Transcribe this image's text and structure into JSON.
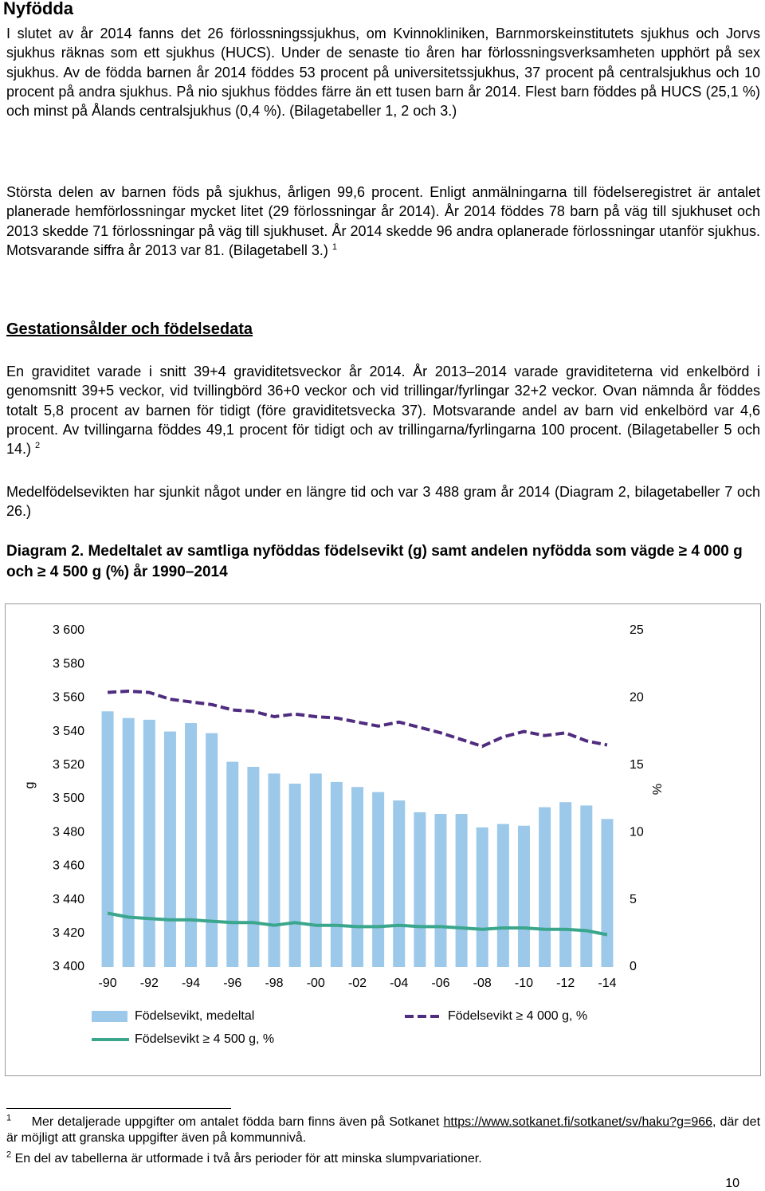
{
  "heading": "Nyfödda",
  "paragraphs": [
    {
      "text": "I slutet av år 2014 fanns det 26 förlossningssjukhus, om Kvinnokliniken, Barnmorskeinstitutets sjukhus och Jorvs sjukhus räknas som ett sjukhus (HUCS). Under de senaste tio åren har förlossningsverksamheten upphört på sex sjukhus. Av de födda barnen år 2014 föddes 53 procent på universitetssjukhus, 37 procent på centralsjukhus och 10 procent på andra sjukhus. På nio sjukhus föddes färre än ett tusen barn år 2014. Flest barn föddes på HUCS (25,1 %) och minst på Ålands centralsjukhus (0,4 %). (Bilagetabeller 1, 2 och 3.)"
    },
    {
      "text": "Största delen av barnen föds på sjukhus, årligen 99,6 procent. Enligt anmälningarna till födelseregistret är antalet planerade hemförlossningar mycket litet (29 förlossningar år 2014). År 2014 föddes 78 barn på väg till sjukhuset och 2013 skedde 71 förlossningar på väg till sjukhuset. År 2014 skedde 96 andra oplanerade förlossningar utanför sjukhus. Motsvarande siffra år 2013 var 81. (Bilagetabell 3.)",
      "footnote_ref": "1"
    }
  ],
  "section_heading": "Gestationsålder och födelsedata",
  "section_paragraphs": [
    {
      "text": "En graviditet varade i snitt 39+4 graviditetsveckor år 2014. År 2013–2014 varade graviditeterna vid enkelbörd i genomsnitt 39+5 veckor, vid tvillingbörd 36+0 veckor och vid trillingar/fyrlingar 32+2 veckor. Ovan nämnda år föddes totalt 5,8 procent av barnen för tidigt (före graviditetsvecka 37). Motsvarande andel av barn vid enkelbörd var 4,6 procent. Av tvillingarna föddes 49,1 procent för tidigt och av trillingarna/fyrlingarna 100 procent. (Bilagetabeller 5 och 14.)",
      "footnote_ref": "2"
    },
    {
      "text": "Medelfödelsevikten har sjunkit något under en längre tid och var 3 488 gram år 2014 (Diagram 2, bilagetabeller 7 och 26.)"
    }
  ],
  "caption": {
    "label": "Diagram 2.",
    "text": "Medeltalet av samtliga nyföddas födelsevikt (g) samt andelen nyfödda som vägde ≥ 4 000 g och ≥ 4 500 g (%) år 1990–2014"
  },
  "chart_data": {
    "type": "bar",
    "categories": [
      "-90",
      null,
      "-92",
      null,
      "-94",
      null,
      "-96",
      null,
      "-98",
      null,
      "-00",
      null,
      "-02",
      null,
      "-04",
      null,
      "-06",
      null,
      "-08",
      null,
      "-10",
      null,
      "-12",
      null,
      "-14"
    ],
    "y_label": "g",
    "y2_label": "%",
    "ylim": [
      3400,
      3600
    ],
    "yticks": [
      {
        "value": 3400,
        "label": "3 400"
      },
      {
        "value": 3420,
        "label": "3 420"
      },
      {
        "value": 3440,
        "label": "3 440"
      },
      {
        "value": 3460,
        "label": "3 460"
      },
      {
        "value": 3480,
        "label": "3 480"
      },
      {
        "value": 3500,
        "label": "3 500"
      },
      {
        "value": 3520,
        "label": "3 520"
      },
      {
        "value": 3540,
        "label": "3 540"
      },
      {
        "value": 3560,
        "label": "3 560"
      },
      {
        "value": 3580,
        "label": "3 580"
      },
      {
        "value": 3600,
        "label": "3 600"
      }
    ],
    "y2lim": [
      0,
      25
    ],
    "y2ticks": [
      0,
      5,
      10,
      15,
      20,
      25
    ],
    "grid": false,
    "series": [
      {
        "name": "Födelsevikt, medeltal",
        "type": "bar",
        "color": "#9cc8ea",
        "axis": "y",
        "values": [
          3552,
          3548,
          3547,
          3540,
          3545,
          3539,
          3522,
          3519,
          3515,
          3509,
          3515,
          3510,
          3507,
          3504,
          3499,
          3492,
          3491,
          3491,
          3483,
          3485,
          3484,
          3495,
          3498,
          3496,
          3488
        ]
      },
      {
        "name": "Födelsevikt ≥ 4 000 g, %",
        "type": "line",
        "dashed": true,
        "color": "#4f2c7f",
        "axis": "y2",
        "values": [
          20.4,
          20.5,
          20.4,
          19.9,
          19.7,
          19.5,
          19.1,
          19.0,
          18.6,
          18.8,
          18.6,
          18.5,
          18.2,
          17.9,
          18.2,
          17.8,
          17.4,
          16.9,
          16.4,
          17.1,
          17.5,
          17.2,
          17.4,
          16.8,
          16.5
        ]
      },
      {
        "name": "Födelsevikt ≥ 4 500 g, %",
        "type": "line",
        "dashed": false,
        "color": "#3aa68c",
        "axis": "y2",
        "values": [
          4.0,
          3.7,
          3.6,
          3.5,
          3.5,
          3.4,
          3.3,
          3.3,
          3.1,
          3.3,
          3.1,
          3.1,
          3.0,
          3.0,
          3.1,
          3.0,
          3.0,
          2.9,
          2.8,
          2.9,
          2.9,
          2.8,
          2.8,
          2.7,
          2.4
        ]
      }
    ]
  },
  "footnotes": [
    {
      "number": "1",
      "text": "Mer detaljerade uppgifter om antalet födda barn finns även på Sotkanet",
      "link": "https://www.sotkanet.fi/sotkanet/sv/haku?g=966",
      "after": ", där det är möjligt att granska uppgifter även på kommunnivå."
    },
    {
      "number": "2",
      "text": "En del av tabellerna är utformade i två års perioder för att minska slumpvariationer."
    }
  ],
  "page_number": "10"
}
